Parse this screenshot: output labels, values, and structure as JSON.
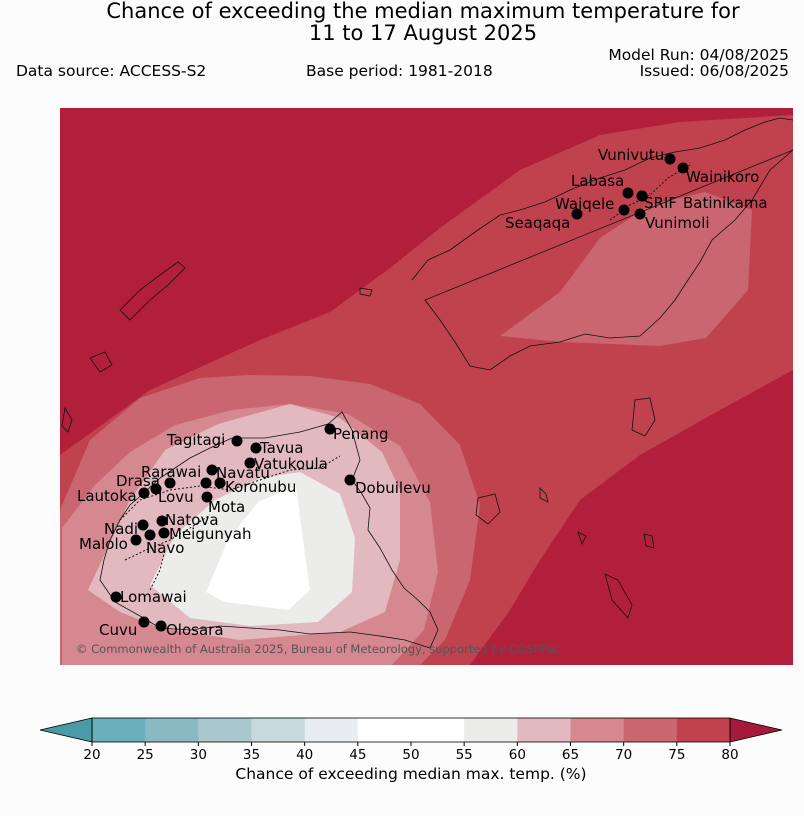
{
  "header": {
    "title_line1": "Chance of exceeding the median maximum temperature for",
    "title_line2": "11 to 17 August 2025",
    "data_source": "Data source: ACCESS-S2",
    "base_period": "Base period: 1981-2018",
    "model_run": "Model Run: 04/08/2025",
    "issued": "Issued: 06/08/2025"
  },
  "map": {
    "copyright": "© Commonwealth of Australia 2025, Bureau of Meteorology, supported by COSPPac",
    "background_color": "#b11f3b",
    "places": [
      {
        "name": "Vunivutu"
      },
      {
        "name": "Wainikoro"
      },
      {
        "name": "Labasa"
      },
      {
        "name": "SRIF"
      },
      {
        "name": "Batinikama"
      },
      {
        "name": "Waiqele"
      },
      {
        "name": "Seaqaqa"
      },
      {
        "name": "Vunimoli"
      },
      {
        "name": "Penang"
      },
      {
        "name": "Tagitagi"
      },
      {
        "name": "Tavua"
      },
      {
        "name": "Vatukoula"
      },
      {
        "name": "Rarawai"
      },
      {
        "name": "Navatu"
      },
      {
        "name": "Drasa"
      },
      {
        "name": "Koronubu"
      },
      {
        "name": "Lautoka"
      },
      {
        "name": "Lovu"
      },
      {
        "name": "Mota"
      },
      {
        "name": "Dobuilevu"
      },
      {
        "name": "Natova"
      },
      {
        "name": "Nadi"
      },
      {
        "name": "Meigunyah"
      },
      {
        "name": "Malolo"
      },
      {
        "name": "Navo"
      },
      {
        "name": "Lomawai"
      },
      {
        "name": "Cuvu"
      },
      {
        "name": "Olosara"
      }
    ]
  },
  "colorbar": {
    "ticks": [
      "20",
      "25",
      "30",
      "35",
      "40",
      "45",
      "50",
      "55",
      "60",
      "65",
      "70",
      "75",
      "80"
    ],
    "colors": [
      "#6aaebb",
      "#89b9c3",
      "#a8c8cd",
      "#c7d9dc",
      "#e8eef0",
      "#ffffff",
      "#ffffff",
      "#ececeb",
      "#e1b9bf",
      "#d5888f",
      "#c96670",
      "#c0424f"
    ],
    "under_color": "#4a9aa8",
    "over_color": "#a7193a",
    "label": "Chance of exceeding median max. temp. (%)"
  }
}
